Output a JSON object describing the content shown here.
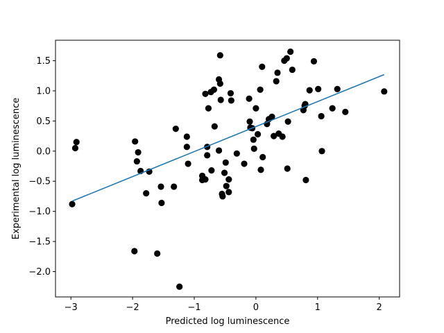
{
  "chart_data": {
    "type": "scatter",
    "title": "",
    "xlabel": "Predicted log luminescence",
    "ylabel": "Experimental log luminescence",
    "xlim": [
      -3.25,
      2.33
    ],
    "ylim": [
      -2.42,
      1.84
    ],
    "x_ticks": [
      -3,
      -2,
      -1,
      0,
      1,
      2
    ],
    "x_tick_labels": [
      "−3",
      "−2",
      "−1",
      "0",
      "1",
      "2"
    ],
    "y_ticks": [
      -2.0,
      -1.5,
      -1.0,
      -0.5,
      0.0,
      0.5,
      1.0,
      1.5
    ],
    "y_tick_labels": [
      "−2.0",
      "−1.5",
      "−1.0",
      "−0.5",
      "0.0",
      "0.5",
      "1.0",
      "1.5"
    ],
    "grid": false,
    "colors": {
      "points": "#000000",
      "fit_line": "#1f77b4",
      "axes": "#000000"
    },
    "fit_line": {
      "x": [
        -2.98,
        2.08
      ],
      "y": [
        -0.83,
        1.27
      ]
    },
    "points": [
      {
        "x": -2.98,
        "y": -0.88
      },
      {
        "x": -2.93,
        "y": 0.05
      },
      {
        "x": -2.91,
        "y": 0.15
      },
      {
        "x": -1.97,
        "y": -1.66
      },
      {
        "x": -1.96,
        "y": 0.16
      },
      {
        "x": -1.93,
        "y": -0.17
      },
      {
        "x": -1.91,
        "y": -0.02
      },
      {
        "x": -1.87,
        "y": -0.33
      },
      {
        "x": -1.78,
        "y": -0.7
      },
      {
        "x": -1.73,
        "y": -0.34
      },
      {
        "x": -1.6,
        "y": -1.7
      },
      {
        "x": -1.54,
        "y": -0.59
      },
      {
        "x": -1.53,
        "y": -0.86
      },
      {
        "x": -1.33,
        "y": -0.59
      },
      {
        "x": -1.3,
        "y": 0.37
      },
      {
        "x": -1.24,
        "y": -2.25
      },
      {
        "x": -1.12,
        "y": 0.24
      },
      {
        "x": -1.12,
        "y": 0.07
      },
      {
        "x": -1.1,
        "y": -0.21
      },
      {
        "x": -0.87,
        "y": -0.41
      },
      {
        "x": -0.87,
        "y": -0.48
      },
      {
        "x": -0.82,
        "y": -0.47
      },
      {
        "x": -0.82,
        "y": 0.95
      },
      {
        "x": -0.79,
        "y": 0.07
      },
      {
        "x": -0.79,
        "y": -0.07
      },
      {
        "x": -0.77,
        "y": 0.71
      },
      {
        "x": -0.73,
        "y": 0.98
      },
      {
        "x": -0.72,
        "y": -0.32
      },
      {
        "x": -0.68,
        "y": 1.02
      },
      {
        "x": -0.67,
        "y": 0.41
      },
      {
        "x": -0.6,
        "y": 0.01
      },
      {
        "x": -0.6,
        "y": 1.19
      },
      {
        "x": -0.58,
        "y": 1.59
      },
      {
        "x": -0.58,
        "y": 1.12
      },
      {
        "x": -0.57,
        "y": 0.85
      },
      {
        "x": -0.55,
        "y": -0.71
      },
      {
        "x": -0.54,
        "y": -0.75
      },
      {
        "x": -0.51,
        "y": -0.36
      },
      {
        "x": -0.49,
        "y": -0.19
      },
      {
        "x": -0.48,
        "y": -0.58
      },
      {
        "x": -0.44,
        "y": -0.68
      },
      {
        "x": -0.44,
        "y": -0.47
      },
      {
        "x": -0.41,
        "y": 0.96
      },
      {
        "x": -0.4,
        "y": 0.84
      },
      {
        "x": -0.31,
        "y": -0.04
      },
      {
        "x": -0.19,
        "y": -0.21
      },
      {
        "x": -0.11,
        "y": 0.87
      },
      {
        "x": -0.1,
        "y": 0.49
      },
      {
        "x": -0.09,
        "y": 0.39
      },
      {
        "x": -0.06,
        "y": 0.38
      },
      {
        "x": -0.04,
        "y": 0.19
      },
      {
        "x": -0.03,
        "y": 0.04
      },
      {
        "x": 0.0,
        "y": 0.71
      },
      {
        "x": 0.03,
        "y": 0.28
      },
      {
        "x": 0.07,
        "y": 1.02
      },
      {
        "x": 0.08,
        "y": -0.31
      },
      {
        "x": 0.1,
        "y": 1.4
      },
      {
        "x": 0.11,
        "y": -0.1
      },
      {
        "x": 0.18,
        "y": 0.45
      },
      {
        "x": 0.21,
        "y": 0.53
      },
      {
        "x": 0.26,
        "y": 0.57
      },
      {
        "x": 0.29,
        "y": 0.25
      },
      {
        "x": 0.33,
        "y": 1.16
      },
      {
        "x": 0.35,
        "y": 1.3
      },
      {
        "x": 0.37,
        "y": 0.29
      },
      {
        "x": 0.43,
        "y": 0.24
      },
      {
        "x": 0.46,
        "y": 1.5
      },
      {
        "x": 0.5,
        "y": 1.54
      },
      {
        "x": 0.51,
        "y": -0.29
      },
      {
        "x": 0.52,
        "y": 0.49
      },
      {
        "x": 0.56,
        "y": 1.65
      },
      {
        "x": 0.59,
        "y": 1.35
      },
      {
        "x": 0.77,
        "y": 0.68
      },
      {
        "x": 0.79,
        "y": 0.75
      },
      {
        "x": 0.8,
        "y": 0.78
      },
      {
        "x": 0.81,
        "y": -0.48
      },
      {
        "x": 0.87,
        "y": 1.01
      },
      {
        "x": 0.94,
        "y": 1.49
      },
      {
        "x": 1.01,
        "y": 1.03
      },
      {
        "x": 1.06,
        "y": 0.58
      },
      {
        "x": 1.07,
        "y": 0.0
      },
      {
        "x": 1.24,
        "y": 0.71
      },
      {
        "x": 1.32,
        "y": 1.03
      },
      {
        "x": 1.45,
        "y": 0.65
      },
      {
        "x": 2.08,
        "y": 0.99
      }
    ]
  }
}
